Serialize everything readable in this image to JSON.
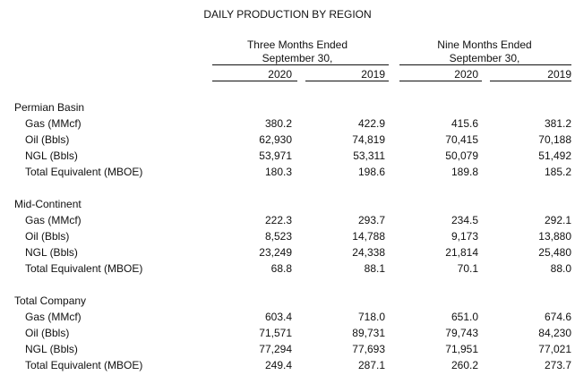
{
  "title": "DAILY PRODUCTION BY REGION",
  "groups": [
    {
      "line1": "Three Months Ended",
      "line2": "September 30,"
    },
    {
      "line1": "Nine Months Ended",
      "line2": "September 30,"
    }
  ],
  "columns": [
    "2020",
    "2019",
    "2020",
    "2019"
  ],
  "sections": [
    {
      "name": "Permian Basin",
      "rows": [
        {
          "label": "Gas (MMcf)",
          "values": [
            "380.2",
            "422.9",
            "415.6",
            "381.2"
          ]
        },
        {
          "label": "Oil (Bbls)",
          "values": [
            "62,930",
            "74,819",
            "70,415",
            "70,188"
          ]
        },
        {
          "label": "NGL (Bbls)",
          "values": [
            "53,971",
            "53,311",
            "50,079",
            "51,492"
          ]
        },
        {
          "label": "Total Equivalent (MBOE)",
          "values": [
            "180.3",
            "198.6",
            "189.8",
            "185.2"
          ]
        }
      ]
    },
    {
      "name": "Mid-Continent",
      "rows": [
        {
          "label": "Gas (MMcf)",
          "values": [
            "222.3",
            "293.7",
            "234.5",
            "292.1"
          ]
        },
        {
          "label": "Oil (Bbls)",
          "values": [
            "8,523",
            "14,788",
            "9,173",
            "13,880"
          ]
        },
        {
          "label": "NGL (Bbls)",
          "values": [
            "23,249",
            "24,338",
            "21,814",
            "25,480"
          ]
        },
        {
          "label": "Total Equivalent (MBOE)",
          "values": [
            "68.8",
            "88.1",
            "70.1",
            "88.0"
          ]
        }
      ]
    },
    {
      "name": "Total Company",
      "rows": [
        {
          "label": "Gas (MMcf)",
          "values": [
            "603.4",
            "718.0",
            "651.0",
            "674.6"
          ]
        },
        {
          "label": "Oil (Bbls)",
          "values": [
            "71,571",
            "89,731",
            "79,743",
            "84,230"
          ]
        },
        {
          "label": "NGL (Bbls)",
          "values": [
            "77,294",
            "77,693",
            "71,951",
            "77,021"
          ]
        },
        {
          "label": "Total Equivalent (MBOE)",
          "values": [
            "249.4",
            "287.1",
            "260.2",
            "273.7"
          ]
        }
      ]
    }
  ]
}
